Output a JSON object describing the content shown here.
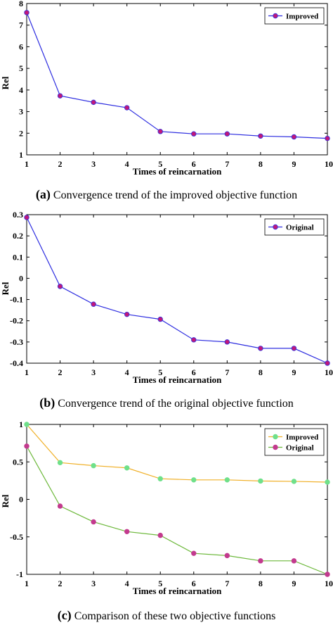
{
  "chart_data": [
    {
      "type": "line",
      "caption_letter": "(a)",
      "caption_text": " Convergence trend of the improved objective function",
      "xlabel": "Times of reincarnation",
      "ylabel": "Rel",
      "x": [
        1,
        2,
        3,
        4,
        5,
        6,
        7,
        8,
        9,
        10
      ],
      "xlim": [
        1,
        10
      ],
      "ylim": [
        1,
        8
      ],
      "yticks": [
        1,
        2,
        3,
        4,
        5,
        6,
        7,
        8
      ],
      "ytick_labels": [
        "1",
        "2",
        "3",
        "4",
        "5",
        "6",
        "7",
        "8"
      ],
      "grid": false,
      "legend": "top-right",
      "series": [
        {
          "name": "Improved",
          "line_color": "#2e2ee0",
          "marker_color": "#c1187a",
          "values": [
            7.58,
            3.73,
            3.43,
            3.18,
            2.08,
            1.97,
            1.97,
            1.87,
            1.83,
            1.76
          ]
        }
      ]
    },
    {
      "type": "line",
      "caption_letter": "(b)",
      "caption_text": " Convergence trend of the original objective function",
      "xlabel": "Times of reincarnation",
      "ylabel": "Rel",
      "x": [
        1,
        2,
        3,
        4,
        5,
        6,
        7,
        8,
        9,
        10
      ],
      "xlim": [
        1,
        10
      ],
      "ylim": [
        -0.4,
        0.3
      ],
      "yticks": [
        -0.4,
        -0.3,
        -0.2,
        -0.1,
        0,
        0.1,
        0.2,
        0.3
      ],
      "ytick_labels": [
        "-0.4",
        "-0.3",
        "-0.2",
        "-0.1",
        "0",
        "0.1",
        "0.2",
        "0.3"
      ],
      "grid": false,
      "legend": "top-right",
      "series": [
        {
          "name": "Original",
          "line_color": "#2e2ee0",
          "marker_color": "#c1187a",
          "values": [
            0.287,
            -0.038,
            -0.122,
            -0.17,
            -0.193,
            -0.29,
            -0.3,
            -0.33,
            -0.33,
            -0.4
          ]
        }
      ]
    },
    {
      "type": "line",
      "caption_letter": "(c)",
      "caption_text": " Comparison of these two objective functions",
      "xlabel": "Times of reincarnation",
      "ylabel": "Rel",
      "x": [
        1,
        2,
        3,
        4,
        5,
        6,
        7,
        8,
        9,
        10
      ],
      "xlim": [
        1,
        10
      ],
      "ylim": [
        -1,
        1
      ],
      "yticks": [
        -1,
        -0.5,
        0,
        0.5,
        1
      ],
      "ytick_labels": [
        "-1",
        "-0.5",
        "0",
        "0.5",
        "1"
      ],
      "grid": false,
      "legend": "top-right",
      "series": [
        {
          "name": "Improved",
          "line_color": "#f0b028",
          "marker_color": "#6fe08a",
          "values": [
            1.0,
            0.49,
            0.45,
            0.42,
            0.275,
            0.26,
            0.26,
            0.245,
            0.24,
            0.23
          ]
        },
        {
          "name": "Original",
          "line_color": "#6cb83a",
          "marker_color": "#c33a8e",
          "values": [
            0.71,
            -0.09,
            -0.3,
            -0.43,
            -0.48,
            -0.72,
            -0.75,
            -0.82,
            -0.82,
            -1.0
          ]
        }
      ]
    }
  ]
}
